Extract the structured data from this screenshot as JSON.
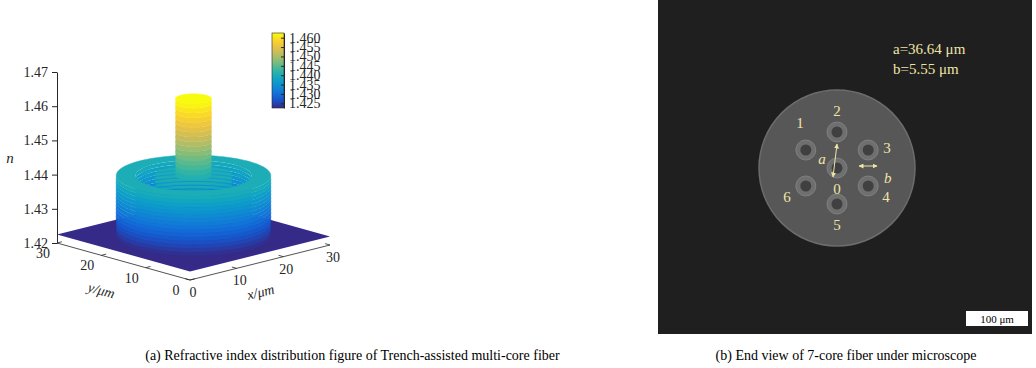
{
  "chart_data": [
    {
      "type": "surface3d",
      "title": "(a) Refractive index distribution figure of Trench-assisted multi-core fiber",
      "x_label": "x/μm",
      "y_label": "y/μm",
      "z_label": "n",
      "xlim": [
        0,
        30
      ],
      "ylim": [
        0,
        30
      ],
      "zlim": [
        1.42,
        1.47
      ],
      "xticks": [
        0,
        10,
        20,
        30
      ],
      "yticks": [
        0,
        10,
        20,
        30
      ],
      "zticks": [
        1.42,
        1.43,
        1.44,
        1.45,
        1.46,
        1.47
      ],
      "center": [
        15,
        15
      ],
      "radii": [
        2.78,
        6,
        9,
        12
      ],
      "n_values": [
        1.4625,
        1.44,
        1.4225,
        1.44
      ],
      "outside_n": 1.4225,
      "colorbar": {
        "lim": [
          1.4225,
          1.4625
        ],
        "ticks": [
          1.425,
          {
            "value": 1.43,
            "label": "1.430"
          },
          1.435,
          {
            "value": 1.44,
            "label": "1.440"
          },
          1.445,
          {
            "value": 1.45,
            "label": "1.450"
          },
          1.455,
          {
            "value": 1.46,
            "label": "1.460"
          }
        ]
      }
    },
    {
      "type": "image",
      "title": "(b) End view of 7-core fiber under microscope",
      "core_labels": [
        "0",
        "1",
        "2",
        "3",
        "4",
        "5",
        "6"
      ],
      "arrow_labels": [
        "a",
        "b"
      ],
      "annotations": [
        "a=36.64 μm",
        "b=5.55 μm"
      ],
      "scale_bar": "100 μm"
    }
  ]
}
